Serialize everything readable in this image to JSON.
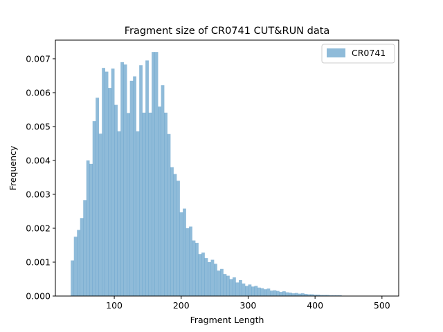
{
  "chart_data": {
    "type": "bar",
    "title": "Fragment size of CR0741 CUT&RUN data",
    "xlabel": "Fragment Length",
    "ylabel": "Frequency",
    "xlim": [
      12,
      525
    ],
    "ylim": [
      0,
      0.00755
    ],
    "xticks": [
      100,
      200,
      300,
      400,
      500
    ],
    "xtick_labels": [
      "100",
      "200",
      "300",
      "400",
      "500"
    ],
    "yticks": [
      0,
      0.001,
      0.002,
      0.003,
      0.004,
      0.005,
      0.006,
      0.007
    ],
    "ytick_labels": [
      "0.000",
      "0.001",
      "0.002",
      "0.003",
      "0.004",
      "0.005",
      "0.006",
      "0.007"
    ],
    "legend_position": "top-right",
    "series": [
      {
        "name": "CR0741",
        "color": "#1f77b4",
        "alpha": 0.5,
        "bin_start": 35,
        "bin_width": 4.65,
        "values": [
          0.00105,
          0.00175,
          0.00195,
          0.0023,
          0.00283,
          0.004,
          0.0039,
          0.00516,
          0.00585,
          0.00479,
          0.00673,
          0.00662,
          0.00614,
          0.00671,
          0.00564,
          0.00486,
          0.0069,
          0.00683,
          0.0054,
          0.00635,
          0.00648,
          0.00486,
          0.00681,
          0.00541,
          0.00695,
          0.00541,
          0.0072,
          0.0072,
          0.00559,
          0.00622,
          0.00541,
          0.00478,
          0.0038,
          0.0036,
          0.0034,
          0.00247,
          0.00258,
          0.002,
          0.00205,
          0.00164,
          0.00157,
          0.00124,
          0.00128,
          0.00112,
          0.001,
          0.00107,
          0.00095,
          0.00075,
          0.0008,
          0.00065,
          0.0006,
          0.0005,
          0.00055,
          0.0004,
          0.00047,
          0.00037,
          0.0003,
          0.00034,
          0.00028,
          0.0003,
          0.00025,
          0.00023,
          0.0002,
          0.00022,
          0.00016,
          0.00017,
          0.00015,
          0.00012,
          0.00014,
          0.00011,
          0.0001,
          8e-05,
          9e-05,
          7e-05,
          8e-05,
          6e-05,
          5e-05,
          5e-05,
          4e-05,
          4e-05,
          3e-05,
          3e-05,
          3e-05,
          2e-05,
          2e-05,
          2e-05,
          2e-05,
          1e-05,
          1e-05,
          1e-05,
          1e-05,
          1e-05,
          1e-05,
          1e-05,
          1e-05,
          1e-05,
          1e-05,
          1e-05
        ]
      }
    ]
  }
}
